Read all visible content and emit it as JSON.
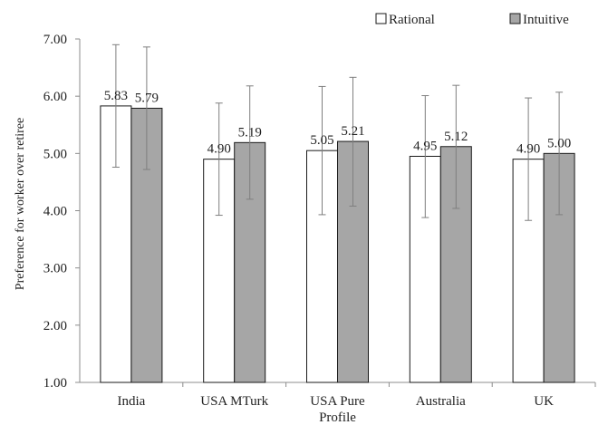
{
  "chart_data": {
    "type": "bar",
    "title": "",
    "xlabel": "",
    "ylabel": "Preference for worker over retiree",
    "ylim": [
      1.0,
      7.0
    ],
    "yticks": [
      "1.00",
      "2.00",
      "3.00",
      "4.00",
      "5.00",
      "6.00",
      "7.00"
    ],
    "grid": false,
    "legend_position": "top-right",
    "categories": [
      [
        "India"
      ],
      [
        "USA MTurk"
      ],
      [
        "USA Pure",
        "Profile"
      ],
      [
        "Australia"
      ],
      [
        "UK"
      ]
    ],
    "series": [
      {
        "name": "Rational",
        "color": "#ffffff",
        "values": [
          5.83,
          4.9,
          5.05,
          4.95,
          4.9
        ],
        "labels": [
          "5.83",
          "4.90",
          "5.05",
          "4.95",
          "4.90"
        ],
        "error_low": [
          4.76,
          3.92,
          3.93,
          3.88,
          3.83
        ],
        "error_high": [
          6.9,
          5.88,
          6.17,
          6.01,
          5.97
        ]
      },
      {
        "name": "Intuitive",
        "color": "#a6a6a6",
        "values": [
          5.79,
          5.19,
          5.21,
          5.12,
          5.0
        ],
        "labels": [
          "5.79",
          "5.19",
          "5.21",
          "5.12",
          "5.00"
        ],
        "error_low": [
          4.72,
          4.2,
          4.08,
          4.04,
          3.93
        ],
        "error_high": [
          6.86,
          6.18,
          6.33,
          6.19,
          6.07
        ]
      }
    ]
  }
}
